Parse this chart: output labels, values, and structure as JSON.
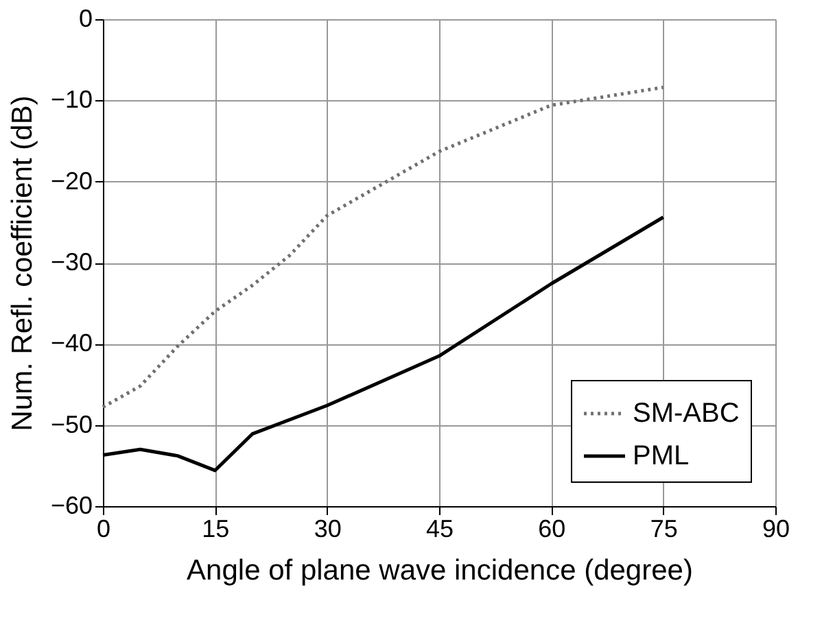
{
  "chart_data": {
    "type": "line",
    "xlabel": "Angle of plane wave incidence (degree)",
    "ylabel": "Num. Refl. coefficient (dB)",
    "xlim": [
      0,
      90
    ],
    "xticks": [
      0,
      15,
      30,
      45,
      60,
      75,
      90
    ],
    "ylim": [
      -60,
      0
    ],
    "yticks": [
      -60,
      -50,
      -40,
      -30,
      -20,
      -10,
      0
    ],
    "grid": true,
    "legend": "bottom right",
    "marker": "none",
    "series": [
      {
        "name": "SM-ABC",
        "color": "#707070",
        "line_style": "dotted",
        "x": [
          0,
          5,
          10,
          15,
          20,
          25,
          30,
          45,
          60,
          75
        ],
        "values": [
          -47.8,
          -45.2,
          -40.3,
          -36.0,
          -32.8,
          -29.1,
          -24.2,
          -16.3,
          -10.6,
          -8.4
        ]
      },
      {
        "name": "PML",
        "color": "#000000",
        "line_style": "solid",
        "x": [
          0,
          5,
          10,
          15,
          20,
          30,
          45,
          60,
          75
        ],
        "values": [
          -53.7,
          -53.0,
          -53.8,
          -55.6,
          -51.1,
          -47.6,
          -41.5,
          -32.6,
          -24.4
        ]
      }
    ]
  }
}
